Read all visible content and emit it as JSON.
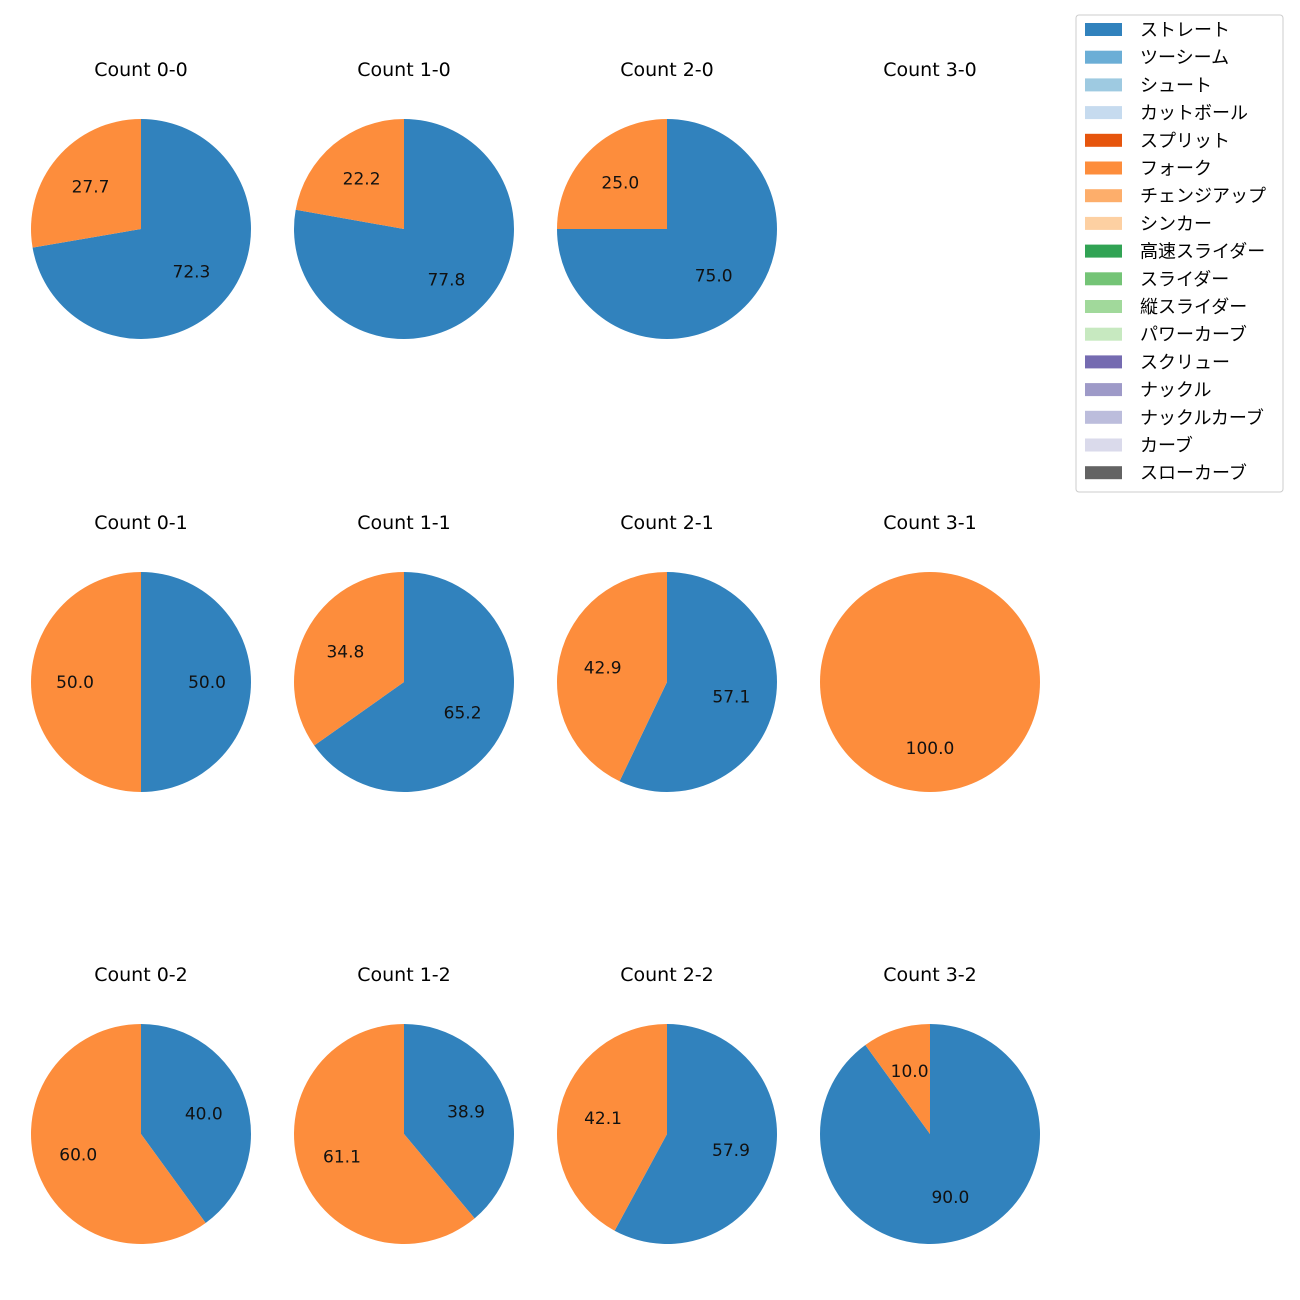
{
  "chart_data": {
    "type": "pie",
    "legend": {
      "placement": "top-right",
      "entries": [
        {
          "label": "ストレート",
          "color": "#3182bd"
        },
        {
          "label": "ツーシーム",
          "color": "#6baed6"
        },
        {
          "label": "シュート",
          "color": "#9ecae1"
        },
        {
          "label": "カットボール",
          "color": "#c6dbef"
        },
        {
          "label": "スプリット",
          "color": "#e6550d"
        },
        {
          "label": "フォーク",
          "color": "#fd8d3c"
        },
        {
          "label": "チェンジアップ",
          "color": "#fdae6b"
        },
        {
          "label": "シンカー",
          "color": "#fdd0a2"
        },
        {
          "label": "高速スライダー",
          "color": "#31a354"
        },
        {
          "label": "スライダー",
          "color": "#74c476"
        },
        {
          "label": "縦スライダー",
          "color": "#a1d99b"
        },
        {
          "label": "パワーカーブ",
          "color": "#c7e9c0"
        },
        {
          "label": "スクリュー",
          "color": "#756bb1"
        },
        {
          "label": "ナックル",
          "color": "#9e9ac8"
        },
        {
          "label": "ナックルカーブ",
          "color": "#bcbddc"
        },
        {
          "label": "カーブ",
          "color": "#dadaeb"
        },
        {
          "label": "スローカーブ",
          "color": "#636363"
        }
      ]
    },
    "pies": [
      {
        "title": "Count 0-0",
        "slices": [
          {
            "name": "ストレート",
            "value": 72.3,
            "label": "72.3"
          },
          {
            "name": "フォーク",
            "value": 27.7,
            "label": "27.7"
          }
        ]
      },
      {
        "title": "Count 1-0",
        "slices": [
          {
            "name": "ストレート",
            "value": 77.8,
            "label": "77.8"
          },
          {
            "name": "フォーク",
            "value": 22.2,
            "label": "22.2"
          }
        ]
      },
      {
        "title": "Count 2-0",
        "slices": [
          {
            "name": "ストレート",
            "value": 75.0,
            "label": "75.0"
          },
          {
            "name": "フォーク",
            "value": 25.0,
            "label": "25.0"
          }
        ]
      },
      {
        "title": "Count 3-0",
        "slices": []
      },
      {
        "title": "Count 0-1",
        "slices": [
          {
            "name": "ストレート",
            "value": 50.0,
            "label": "50.0"
          },
          {
            "name": "フォーク",
            "value": 50.0,
            "label": "50.0"
          }
        ]
      },
      {
        "title": "Count 1-1",
        "slices": [
          {
            "name": "ストレート",
            "value": 65.2,
            "label": "65.2"
          },
          {
            "name": "フォーク",
            "value": 34.8,
            "label": "34.8"
          }
        ]
      },
      {
        "title": "Count 2-1",
        "slices": [
          {
            "name": "ストレート",
            "value": 57.1,
            "label": "57.1"
          },
          {
            "name": "フォーク",
            "value": 42.9,
            "label": "42.9"
          }
        ]
      },
      {
        "title": "Count 3-1",
        "slices": [
          {
            "name": "フォーク",
            "value": 100.0,
            "label": "100.0"
          }
        ]
      },
      {
        "title": "Count 0-2",
        "slices": [
          {
            "name": "ストレート",
            "value": 40.0,
            "label": "40.0"
          },
          {
            "name": "フォーク",
            "value": 60.0,
            "label": "60.0"
          }
        ]
      },
      {
        "title": "Count 1-2",
        "slices": [
          {
            "name": "ストレート",
            "value": 38.9,
            "label": "38.9"
          },
          {
            "name": "フォーク",
            "value": 61.1,
            "label": "61.1"
          }
        ]
      },
      {
        "title": "Count 2-2",
        "slices": [
          {
            "name": "ストレート",
            "value": 57.9,
            "label": "57.9"
          },
          {
            "name": "フォーク",
            "value": 42.1,
            "label": "42.1"
          }
        ]
      },
      {
        "title": "Count 3-2",
        "slices": [
          {
            "name": "ストレート",
            "value": 90.0,
            "label": "90.0"
          },
          {
            "name": "フォーク",
            "value": 10.0,
            "label": "10.0"
          }
        ]
      }
    ]
  }
}
